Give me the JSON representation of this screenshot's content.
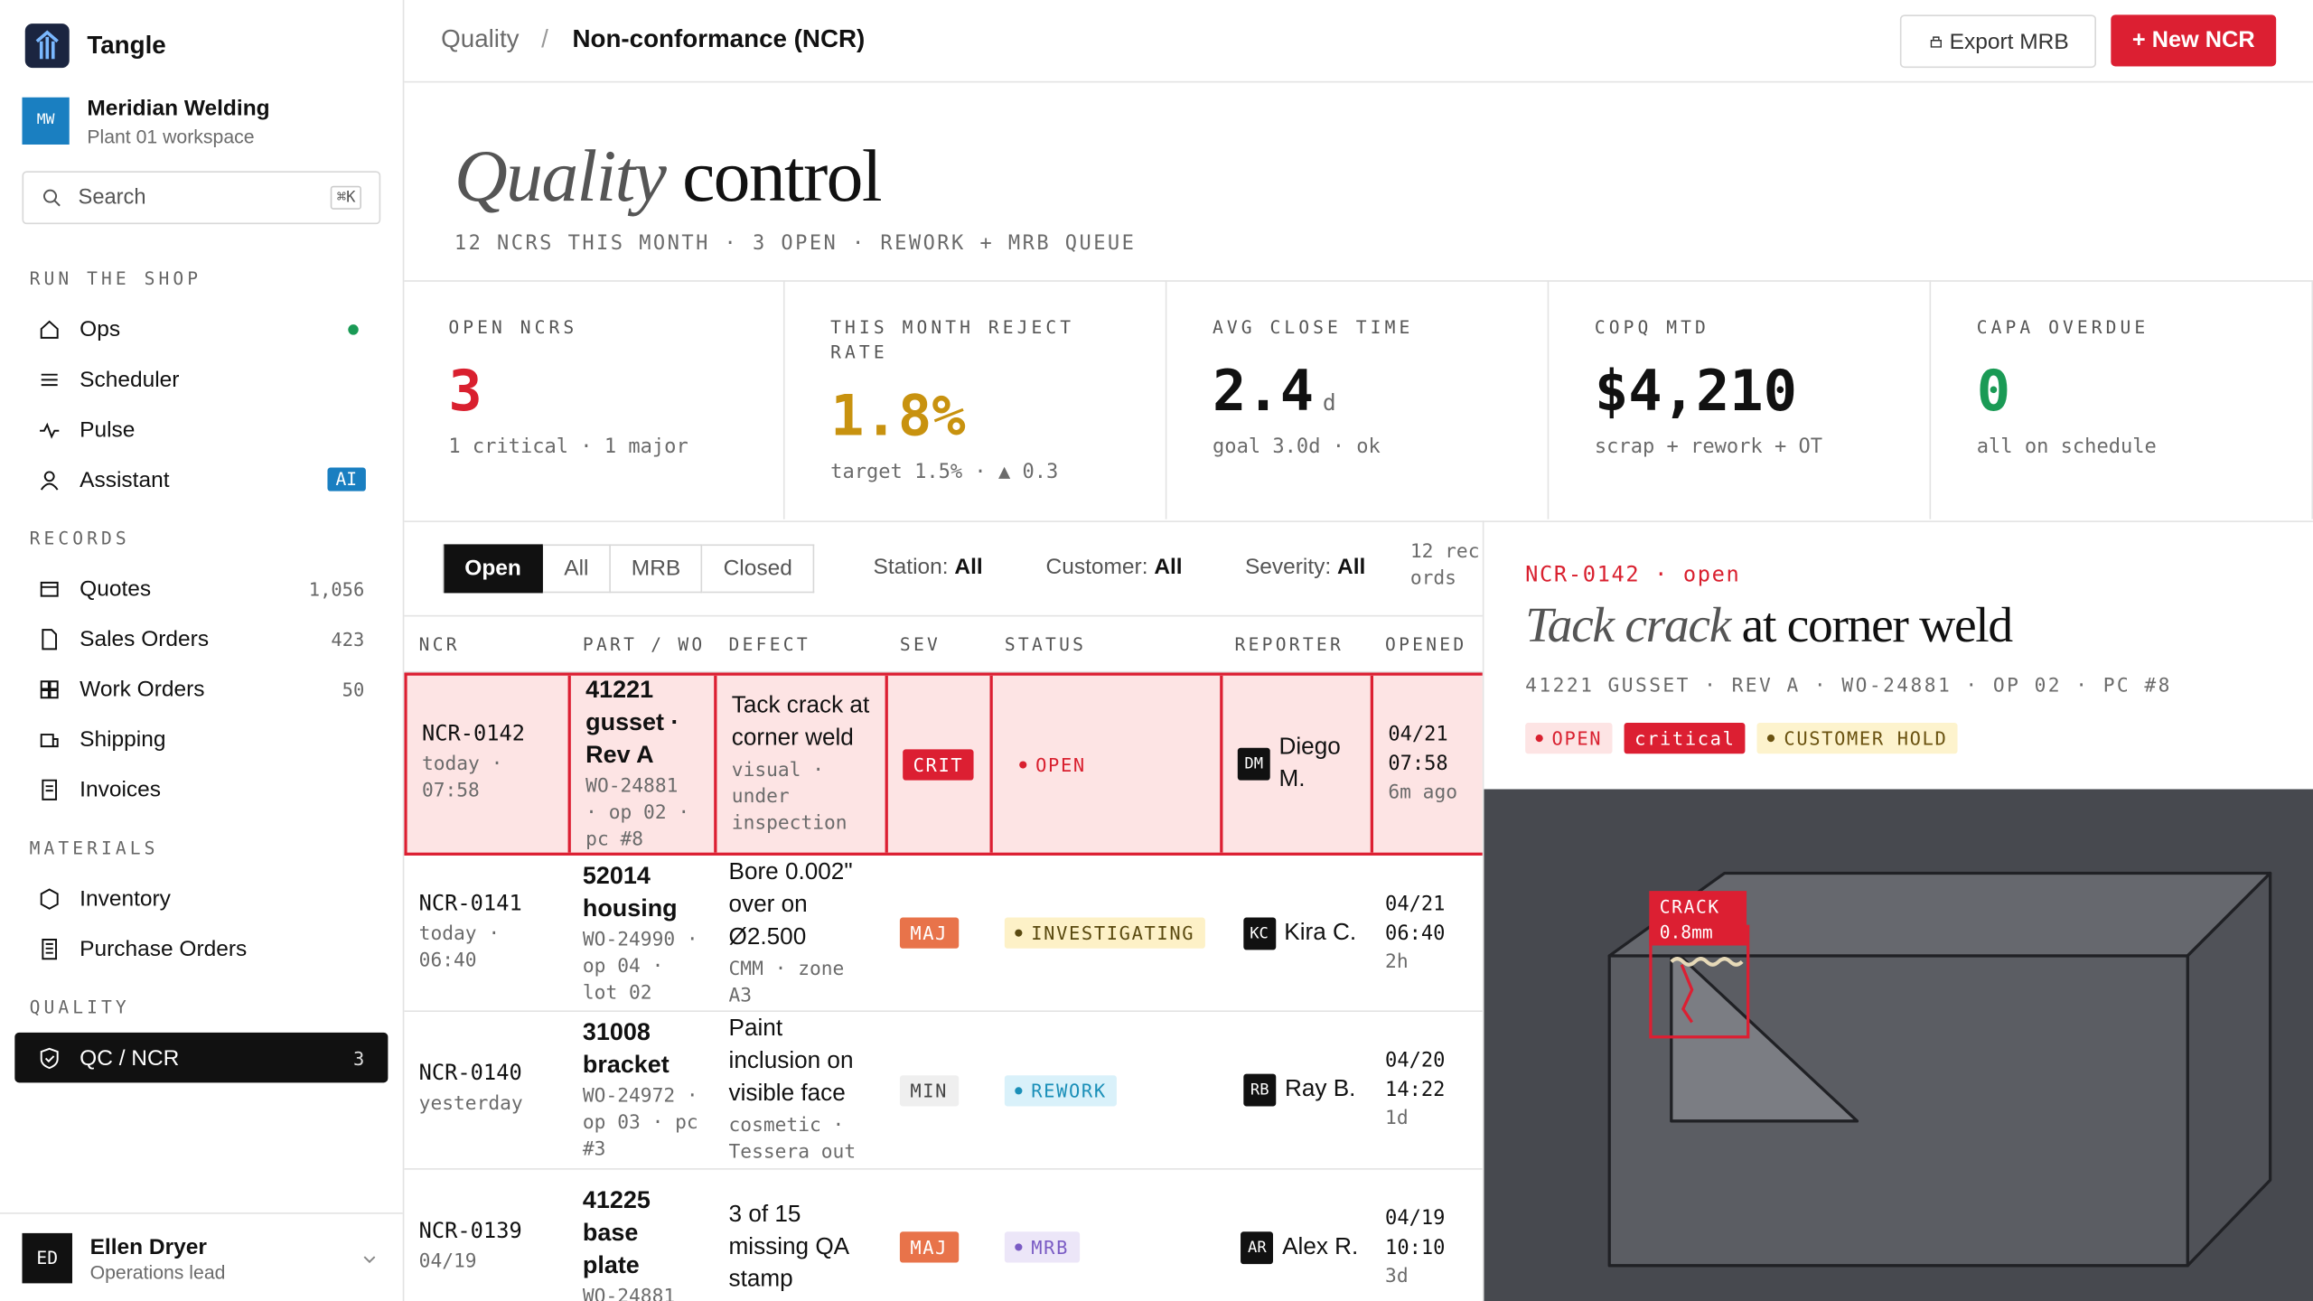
{
  "sidebar": {
    "brand": "Tangle",
    "workspace": {
      "initials": "MW",
      "name": "Meridian Welding",
      "sub": "Plant 01 workspace"
    },
    "search": {
      "placeholder": "Search",
      "shortcut": "⌘K"
    },
    "sections": [
      {
        "title": "RUN THE SHOP",
        "items": [
          {
            "label": "Ops",
            "dot": true
          },
          {
            "label": "Scheduler"
          },
          {
            "label": "Pulse"
          },
          {
            "label": "Assistant",
            "badge": "AI"
          }
        ]
      },
      {
        "title": "RECORDS",
        "items": [
          {
            "label": "Quotes",
            "count": "1,056"
          },
          {
            "label": "Sales Orders",
            "count": "423"
          },
          {
            "label": "Work Orders",
            "count": "50"
          },
          {
            "label": "Shipping"
          },
          {
            "label": "Invoices"
          }
        ]
      },
      {
        "title": "MATERIALS",
        "items": [
          {
            "label": "Inventory"
          },
          {
            "label": "Purchase Orders"
          }
        ]
      },
      {
        "title": "QUALITY",
        "items": [
          {
            "label": "QC / NCR",
            "count": "3",
            "active": true
          }
        ]
      }
    ],
    "user": {
      "initials": "ED",
      "name": "Ellen Dryer",
      "role": "Operations lead"
    }
  },
  "header": {
    "breadcrumb": [
      "Quality",
      "Non-conformance (NCR)"
    ],
    "separator": "/",
    "export": "Export MRB",
    "new": "+ New NCR"
  },
  "hero": {
    "title_italic": "Quality",
    "title_rest": "control",
    "subtitle": "12 NCRS THIS MONTH · 3 OPEN · REWORK + MRB QUEUE"
  },
  "stats": [
    {
      "label": "OPEN NCRS",
      "value": "3",
      "color": "#d9202f",
      "note": "1 critical · 1 major"
    },
    {
      "label": "THIS MONTH REJECT RATE",
      "value": "1.8%",
      "color": "#c8920f",
      "note": "target 1.5% · ▲ 0.3"
    },
    {
      "label": "AVG CLOSE TIME",
      "value": "2.4",
      "unit": "d",
      "color": "#111111",
      "note": "goal 3.0d · ok"
    },
    {
      "label": "COPQ MTD",
      "value": "$4,210",
      "color": "#111111",
      "note": "scrap + rework + OT"
    },
    {
      "label": "CAPA OVERDUE",
      "value": "0",
      "color": "#1a9a55",
      "note": "all on schedule"
    }
  ],
  "filters": {
    "tabs": [
      "Open",
      "All",
      "MRB",
      "Closed"
    ],
    "active_tab": 0,
    "dropdowns": [
      {
        "label": "Station:",
        "value": "All"
      },
      {
        "label": "Customer:",
        "value": "All"
      },
      {
        "label": "Severity:",
        "value": "All"
      }
    ],
    "count": "12 records"
  },
  "table": {
    "columns": [
      "NCR",
      "PART / WO",
      "DEFECT",
      "SEV",
      "STATUS",
      "REPORTER",
      "OPENED"
    ],
    "rows": [
      {
        "id": "NCR-0142",
        "time": "today · 07:58",
        "part": "41221 gusset · Rev A",
        "wo": "WO-24881 · op 02 · pc #8",
        "defect": "Tack crack at corner weld",
        "defect_note": "visual · under inspection",
        "sev": {
          "label": "CRIT",
          "bg": "#dc1f32",
          "fg": "#ffffff"
        },
        "status": {
          "label": "OPEN",
          "bg": "transparent",
          "fg": "#d9202f"
        },
        "initials": "DM",
        "reporter": "Diego M.",
        "date": "04/21",
        "clock": "07:58",
        "ago": "6m ago",
        "highlight": true
      },
      {
        "id": "NCR-0141",
        "time": "today · 06:40",
        "part": "52014 housing",
        "wo": "WO-24990 · op 04 · lot 02",
        "defect": "Bore 0.002\" over on Ø2.500",
        "defect_note": "CMM · zone A3",
        "sev": {
          "label": "MAJ",
          "bg": "#e8734a",
          "fg": "#ffffff"
        },
        "status": {
          "label": "INVESTIGATING",
          "bg": "#fdf1c7",
          "fg": "#5a4a10"
        },
        "initials": "KC",
        "reporter": "Kira C.",
        "date": "04/21",
        "clock": "06:40",
        "ago": "2h"
      },
      {
        "id": "NCR-0140",
        "time": "yesterday",
        "part": "31008 bracket",
        "wo": "WO-24972 · op 03 · pc #3",
        "defect": "Paint inclusion on visible face",
        "defect_note": "cosmetic · Tessera out",
        "sev": {
          "label": "MIN",
          "bg": "#efefef",
          "fg": "#444444"
        },
        "status": {
          "label": "REWORK",
          "bg": "#d9f1fa",
          "fg": "#1a8fb8"
        },
        "initials": "RB",
        "reporter": "Ray B.",
        "date": "04/20",
        "clock": "14:22",
        "ago": "1d"
      },
      {
        "id": "NCR-0139",
        "time": "04/19",
        "part": "41225 base plate",
        "wo": "WO-24881",
        "defect": "3 of 15 missing QA stamp",
        "sev": {
          "label": "MAJ",
          "bg": "#e8734a",
          "fg": "#ffffff"
        },
        "status": {
          "label": "MRB",
          "bg": "#ece6f8",
          "fg": "#7a5bc4"
        },
        "initials": "AR",
        "reporter": "Alex R.",
        "date": "04/19",
        "clock": "10:10",
        "ago": "3d"
      }
    ]
  },
  "detail": {
    "id": "NCR-0142 · open",
    "title_italic": "Tack crack",
    "title_rest": "at corner weld",
    "meta": "41221 GUSSET · REV A · WO-24881 · OP 02 · PC #8",
    "tags": [
      {
        "label": "OPEN",
        "bg": "#fde4e4",
        "fg": "#d9202f",
        "dot": true
      },
      {
        "label": "critical",
        "bg": "#dc1f32",
        "fg": "#ffffff"
      },
      {
        "label": "CUSTOMER HOLD",
        "bg": "#fdf3cd",
        "fg": "#6a5210",
        "dot": true
      }
    ],
    "annotation": {
      "label": "CRACK",
      "size": "0.8mm"
    }
  }
}
